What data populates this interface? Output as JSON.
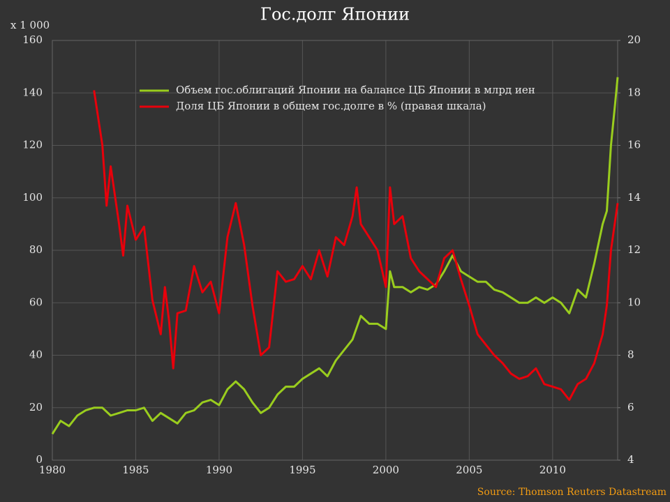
{
  "chart_data": {
    "type": "line",
    "title": "Гос.долг Японии",
    "y_unit_label": "x 1 000",
    "source": "Source: Thomson Reuters Datastream",
    "xlim": [
      1980,
      2013.9
    ],
    "xticks": [
      1980,
      1985,
      1990,
      1995,
      2000,
      2005,
      2010
    ],
    "ylim": [
      0,
      160
    ],
    "yticks": [
      0,
      20,
      40,
      60,
      80,
      100,
      120,
      140,
      160
    ],
    "y2lim": [
      4,
      20
    ],
    "y2ticks": [
      4,
      6,
      8,
      10,
      12,
      14,
      16,
      18,
      20
    ],
    "grid": true,
    "legend": "top",
    "series": [
      {
        "name": "Объем гос.облигаций Японии на балансе ЦБ Японии в млрд иен",
        "color": "#9acd1e",
        "x": [
          1980,
          1980.5,
          1981,
          1981.5,
          1982,
          1982.5,
          1983,
          1983.5,
          1984,
          1984.5,
          1985,
          1985.5,
          1986,
          1986.5,
          1987,
          1987.5,
          1988,
          1988.5,
          1989,
          1989.5,
          1990,
          1990.5,
          1991,
          1991.5,
          1992,
          1992.5,
          1993,
          1993.5,
          1994,
          1994.5,
          1995,
          1995.5,
          1996,
          1996.5,
          1997,
          1997.5,
          1998,
          1998.5,
          1999,
          1999.5,
          2000,
          2000.25,
          2000.5,
          2001,
          2001.5,
          2002,
          2002.5,
          2003,
          2003.5,
          2004,
          2004.5,
          2005,
          2005.5,
          2006,
          2006.5,
          2007,
          2007.5,
          2008,
          2008.5,
          2009,
          2009.5,
          2010,
          2010.5,
          2011,
          2011.5,
          2012,
          2012.5,
          2013,
          2013.25,
          2013.5,
          2013.75,
          2013.9
        ],
        "values": [
          10,
          15,
          13,
          17,
          19,
          20,
          20,
          17,
          18,
          19,
          19,
          20,
          15,
          18,
          16,
          14,
          18,
          19,
          22,
          23,
          21,
          27,
          30,
          27,
          22,
          18,
          20,
          25,
          28,
          28,
          31,
          33,
          35,
          32,
          38,
          42,
          46,
          55,
          52,
          52,
          50,
          72,
          66,
          66,
          64,
          66,
          65,
          67,
          72,
          78,
          72,
          70,
          68,
          68,
          65,
          64,
          62,
          60,
          60,
          62,
          60,
          62,
          60,
          56,
          65,
          62,
          75,
          90,
          95,
          120,
          136,
          146
        ]
      },
      {
        "name": "Доля ЦБ Японии в общем гос.долге в % (правая шкала)",
        "color": "#e8000b",
        "axis": "y2",
        "x": [
          1982.5,
          1983,
          1983.25,
          1983.5,
          1984,
          1984.25,
          1984.5,
          1985,
          1985.5,
          1986,
          1986.5,
          1986.75,
          1987,
          1987.25,
          1987.5,
          1988,
          1988.5,
          1989,
          1989.5,
          1990,
          1990.5,
          1991,
          1991.5,
          1992,
          1992.5,
          1993,
          1993.5,
          1994,
          1994.5,
          1995,
          1995.5,
          1996,
          1996.5,
          1997,
          1997.5,
          1998,
          1998.25,
          1998.5,
          1999,
          1999.5,
          2000,
          2000.25,
          2000.5,
          2001,
          2001.5,
          2002,
          2002.5,
          2003,
          2003.5,
          2004,
          2004.5,
          2005,
          2005.5,
          2006,
          2006.5,
          2007,
          2007.5,
          2008,
          2008.5,
          2009,
          2009.5,
          2010,
          2010.5,
          2011,
          2011.5,
          2012,
          2012.5,
          2013,
          2013.25,
          2013.5,
          2013.9
        ],
        "values": [
          18.1,
          16.0,
          13.7,
          15.2,
          13.0,
          11.8,
          13.7,
          12.4,
          12.9,
          10.1,
          8.8,
          10.6,
          9.3,
          7.5,
          9.6,
          9.7,
          11.4,
          10.4,
          10.8,
          9.6,
          12.5,
          13.8,
          12.2,
          9.9,
          8.0,
          8.3,
          11.2,
          10.8,
          10.9,
          11.4,
          10.9,
          12.0,
          11.0,
          12.5,
          12.2,
          13.3,
          14.4,
          13.0,
          12.5,
          12.0,
          10.6,
          14.4,
          13.0,
          13.3,
          11.7,
          11.2,
          10.9,
          10.6,
          11.7,
          12.0,
          10.9,
          9.9,
          8.8,
          8.4,
          8.0,
          7.7,
          7.3,
          7.1,
          7.2,
          7.5,
          6.9,
          6.8,
          6.7,
          6.3,
          6.9,
          7.1,
          7.7,
          8.8,
          9.9,
          12.0,
          13.8
        ]
      }
    ]
  }
}
